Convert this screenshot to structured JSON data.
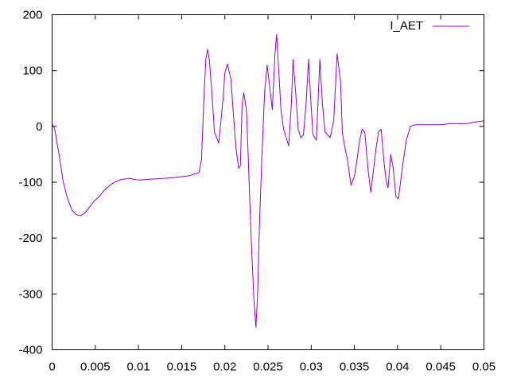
{
  "chart_data": {
    "type": "line",
    "title": "",
    "xlabel": "",
    "ylabel": "",
    "xlim": [
      0,
      0.05
    ],
    "ylim": [
      -400,
      200
    ],
    "grid": false,
    "legend_position": "top-right",
    "x_ticks": [
      {
        "value": 0,
        "label": "0"
      },
      {
        "value": 0.005,
        "label": "0.005"
      },
      {
        "value": 0.01,
        "label": "0.01"
      },
      {
        "value": 0.015,
        "label": "0.015"
      },
      {
        "value": 0.02,
        "label": "0.02"
      },
      {
        "value": 0.025,
        "label": "0.025"
      },
      {
        "value": 0.03,
        "label": "0.03"
      },
      {
        "value": 0.035,
        "label": "0.035"
      },
      {
        "value": 0.04,
        "label": "0.04"
      },
      {
        "value": 0.045,
        "label": "0.045"
      },
      {
        "value": 0.05,
        "label": "0.05"
      }
    ],
    "y_ticks": [
      {
        "value": 200,
        "label": "200"
      },
      {
        "value": 100,
        "label": "100"
      },
      {
        "value": 0,
        "label": "0"
      },
      {
        "value": -100,
        "label": "-100"
      },
      {
        "value": -200,
        "label": "-200"
      },
      {
        "value": -300,
        "label": "-300"
      },
      {
        "value": -400,
        "label": "-400"
      }
    ],
    "series": [
      {
        "name": "I_AET",
        "color": "#9400d3",
        "x": [
          0,
          0.0003,
          0.0008,
          0.0013,
          0.0018,
          0.0023,
          0.0028,
          0.0033,
          0.0038,
          0.0043,
          0.0048,
          0.0055,
          0.006,
          0.0065,
          0.007,
          0.0075,
          0.008,
          0.009,
          0.0095,
          0.01,
          0.011,
          0.012,
          0.013,
          0.014,
          0.015,
          0.016,
          0.0165,
          0.017,
          0.0173,
          0.0176,
          0.0178,
          0.018,
          0.0182,
          0.0185,
          0.0188,
          0.0193,
          0.0198,
          0.02,
          0.0203,
          0.0207,
          0.021,
          0.0213,
          0.0216,
          0.0218,
          0.022,
          0.0222,
          0.0225,
          0.0227,
          0.0229,
          0.0231,
          0.0234,
          0.0236,
          0.0238,
          0.024,
          0.0243,
          0.0246,
          0.0249,
          0.0252,
          0.0255,
          0.0258,
          0.026,
          0.0262,
          0.0265,
          0.0268,
          0.0271,
          0.0274,
          0.0277,
          0.0279,
          0.0282,
          0.0285,
          0.0288,
          0.0291,
          0.0294,
          0.0297,
          0.0299,
          0.0302,
          0.0306,
          0.031,
          0.0313,
          0.0316,
          0.0319,
          0.0322,
          0.0326,
          0.033,
          0.0334,
          0.0336,
          0.0338,
          0.0342,
          0.0346,
          0.035,
          0.0353,
          0.0356,
          0.0359,
          0.0362,
          0.0366,
          0.0369,
          0.0372,
          0.0375,
          0.0378,
          0.0381,
          0.0384,
          0.0387,
          0.0389,
          0.0392,
          0.0395,
          0.0398,
          0.0401,
          0.0405,
          0.041,
          0.0415,
          0.042,
          0.043,
          0.044,
          0.045,
          0.046,
          0.047,
          0.048,
          0.049,
          0.05
        ],
        "y": [
          5,
          -5,
          -50,
          -100,
          -130,
          -150,
          -158,
          -160,
          -155,
          -145,
          -135,
          -125,
          -115,
          -108,
          -102,
          -98,
          -95,
          -93,
          -95,
          -96,
          -95,
          -94,
          -93,
          -92,
          -90,
          -88,
          -85,
          -83,
          -60,
          60,
          120,
          138,
          120,
          60,
          -10,
          -30,
          50,
          95,
          112,
          85,
          20,
          -40,
          -75,
          -70,
          40,
          60,
          30,
          -50,
          -140,
          -220,
          -320,
          -360,
          -300,
          -180,
          -50,
          60,
          110,
          70,
          30,
          130,
          165,
          110,
          30,
          -5,
          -20,
          -35,
          40,
          120,
          60,
          -5,
          -20,
          -15,
          40,
          120,
          60,
          -15,
          -25,
          120,
          40,
          -10,
          -15,
          -20,
          10,
          130,
          80,
          -10,
          -30,
          -60,
          -105,
          -90,
          -60,
          -25,
          -5,
          -10,
          -80,
          -118,
          -80,
          -40,
          -10,
          -5,
          -60,
          -100,
          -110,
          -50,
          -75,
          -125,
          -130,
          -80,
          -25,
          0,
          3,
          3,
          3,
          3,
          5,
          5,
          5,
          8,
          10
        ]
      }
    ]
  }
}
